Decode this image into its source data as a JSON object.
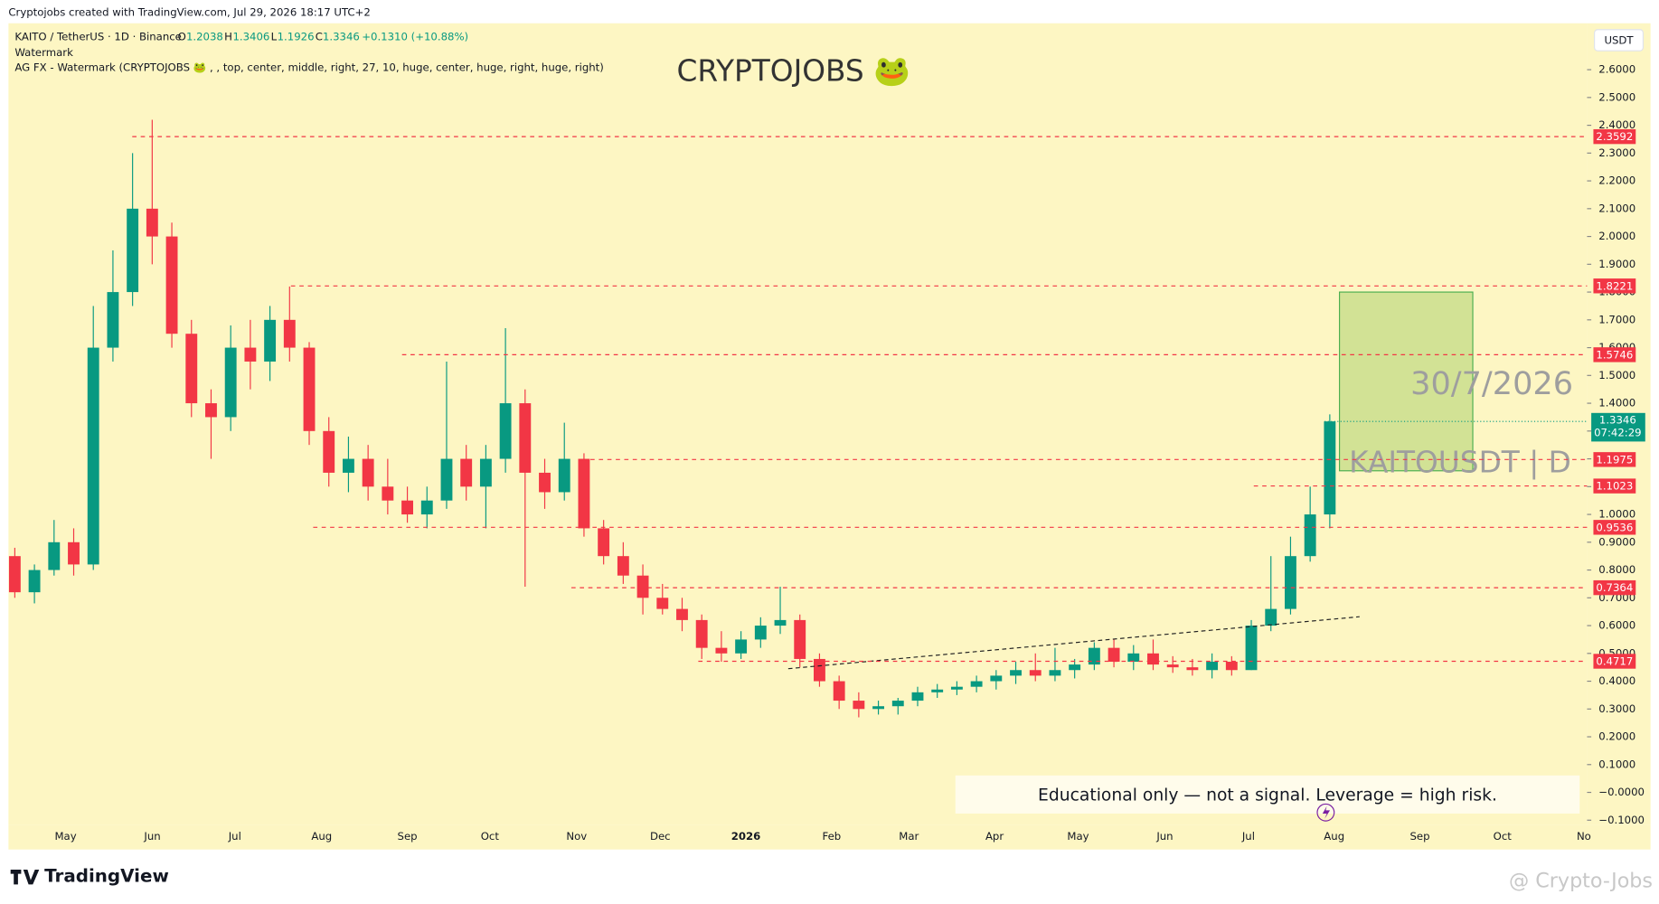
{
  "header": "Cryptojobs created with TradingView.com, Jul 29, 2026 18:17 UTC+2",
  "chart_data": {
    "type": "candlestick",
    "legend": {
      "symbol": "KAITO / TetherUS · 1D · Binance",
      "o_label": "O",
      "open": 1.2038,
      "h_label": "H",
      "high": 1.3406,
      "l_label": "L",
      "low": 1.1926,
      "c_label": "C",
      "close": 1.3346,
      "change": "+0.1310 (+10.88%)",
      "indicator1": "Watermark",
      "indicator2": "AG FX - Watermark (CRYPTOJOBS 🐸 , , top, center, middle, right, 27, 10, huge, center, huge, right, huge, right)"
    },
    "watermark": "CRYPTOJOBS 🐸",
    "currency": "USDT",
    "open": [
      0.85,
      0.72,
      0.8,
      0.9,
      0.82,
      1.6,
      1.8,
      2.1,
      2.0,
      1.65,
      1.4,
      1.35,
      1.6,
      1.55,
      1.7,
      1.6,
      1.3,
      1.15,
      1.2,
      1.1,
      1.05,
      1.0,
      1.05,
      1.2,
      1.1,
      1.2,
      1.4,
      1.15,
      1.08,
      1.2,
      0.95,
      0.85,
      0.78,
      0.7,
      0.66,
      0.62,
      0.52,
      0.5,
      0.55,
      0.6,
      0.62,
      0.48,
      0.4,
      0.33,
      0.3,
      0.31,
      0.33,
      0.36,
      0.37,
      0.38,
      0.4,
      0.42,
      0.44,
      0.42,
      0.44,
      0.46,
      0.52,
      0.47,
      0.5,
      0.46,
      0.45,
      0.44,
      0.47,
      0.44,
      0.6,
      0.66,
      0.85,
      1.0
    ],
    "high": [
      0.88,
      0.82,
      0.98,
      0.95,
      1.75,
      1.95,
      2.3,
      2.42,
      2.05,
      1.7,
      1.45,
      1.68,
      1.7,
      1.75,
      1.82,
      1.62,
      1.35,
      1.28,
      1.25,
      1.2,
      1.1,
      1.1,
      1.55,
      1.25,
      1.25,
      1.67,
      1.45,
      1.2,
      1.33,
      1.22,
      0.98,
      0.9,
      0.82,
      0.75,
      0.7,
      0.64,
      0.58,
      0.58,
      0.63,
      0.74,
      0.64,
      0.5,
      0.42,
      0.36,
      0.33,
      0.34,
      0.38,
      0.39,
      0.4,
      0.42,
      0.44,
      0.47,
      0.5,
      0.52,
      0.48,
      0.54,
      0.55,
      0.53,
      0.55,
      0.49,
      0.48,
      0.5,
      0.49,
      0.62,
      0.85,
      0.92,
      1.1,
      1.36
    ],
    "low": [
      0.7,
      0.68,
      0.78,
      0.78,
      0.8,
      1.55,
      1.75,
      1.9,
      1.6,
      1.35,
      1.2,
      1.3,
      1.45,
      1.48,
      1.55,
      1.25,
      1.1,
      1.08,
      1.05,
      1.0,
      0.97,
      0.95,
      1.02,
      1.05,
      0.95,
      1.15,
      0.74,
      1.02,
      1.05,
      0.92,
      0.82,
      0.75,
      0.64,
      0.64,
      0.58,
      0.48,
      0.47,
      0.48,
      0.52,
      0.57,
      0.45,
      0.38,
      0.3,
      0.27,
      0.28,
      0.28,
      0.31,
      0.34,
      0.35,
      0.36,
      0.37,
      0.39,
      0.4,
      0.4,
      0.41,
      0.44,
      0.45,
      0.44,
      0.44,
      0.43,
      0.42,
      0.41,
      0.42,
      0.44,
      0.58,
      0.64,
      0.83,
      0.95
    ],
    "close": [
      0.72,
      0.8,
      0.9,
      0.82,
      1.6,
      1.8,
      2.1,
      2.0,
      1.65,
      1.4,
      1.35,
      1.6,
      1.55,
      1.7,
      1.6,
      1.3,
      1.15,
      1.2,
      1.1,
      1.05,
      1.0,
      1.05,
      1.2,
      1.1,
      1.2,
      1.4,
      1.15,
      1.08,
      1.2,
      0.95,
      0.85,
      0.78,
      0.7,
      0.66,
      0.62,
      0.52,
      0.5,
      0.55,
      0.6,
      0.62,
      0.48,
      0.4,
      0.33,
      0.3,
      0.31,
      0.33,
      0.36,
      0.37,
      0.38,
      0.4,
      0.42,
      0.44,
      0.42,
      0.44,
      0.46,
      0.52,
      0.47,
      0.5,
      0.46,
      0.45,
      0.44,
      0.47,
      0.44,
      0.6,
      0.66,
      0.85,
      1.0,
      1.3346
    ],
    "up_color": "#089981",
    "down_color": "#f23645",
    "ylim": [
      -0.118,
      2.767
    ],
    "yticks": [
      {
        "value": 2.6,
        "label": "2.6000"
      },
      {
        "value": 2.5,
        "label": "2.5000"
      },
      {
        "value": 2.4,
        "label": "2.4000"
      },
      {
        "value": 2.3,
        "label": "2.3000"
      },
      {
        "value": 2.2,
        "label": "2.2000"
      },
      {
        "value": 2.1,
        "label": "2.1000"
      },
      {
        "value": 2.0,
        "label": "2.0000"
      },
      {
        "value": 1.9,
        "label": "1.9000"
      },
      {
        "value": 1.8,
        "label": "1.8000"
      },
      {
        "value": 1.7,
        "label": "1.7000"
      },
      {
        "value": 1.6,
        "label": "1.6000"
      },
      {
        "value": 1.5,
        "label": "1.5000"
      },
      {
        "value": 1.4,
        "label": "1.4000"
      },
      {
        "value": 1.3,
        "label": "1.3000"
      },
      {
        "value": 1.2,
        "label": "1.2000"
      },
      {
        "value": 1.1,
        "label": "1.1000"
      },
      {
        "value": 1.0,
        "label": "1.0000"
      },
      {
        "value": 0.9,
        "label": "0.9000"
      },
      {
        "value": 0.8,
        "label": "0.8000"
      },
      {
        "value": 0.7,
        "label": "0.7000"
      },
      {
        "value": 0.6,
        "label": "0.6000"
      },
      {
        "value": 0.5,
        "label": "0.5000"
      },
      {
        "value": 0.4,
        "label": "0.4000"
      },
      {
        "value": 0.3,
        "label": "0.3000"
      },
      {
        "value": 0.2,
        "label": "0.2000"
      },
      {
        "value": 0.1,
        "label": "0.1000"
      },
      {
        "value": 0,
        "label": "−0.0000"
      },
      {
        "value": -0.1,
        "label": "−0.1000"
      }
    ],
    "months": [
      "May",
      "Jun",
      "Jul",
      "Aug",
      "Sep",
      "Oct",
      "Nov",
      "Dec",
      "2026",
      "Feb",
      "Mar",
      "Apr",
      "May",
      "Jun",
      "Jul",
      "Aug",
      "Sep",
      "Oct",
      "No"
    ],
    "levels": [
      2.3592,
      1.8221,
      1.5746,
      1.1975,
      1.1023,
      0.9536,
      0.7364,
      0.4717
    ],
    "level_color": "#f23645",
    "last_price": 1.3346,
    "countdown": "07:42:29",
    "zone": {
      "top": 1.8,
      "bottom": 1.157,
      "date_label": "30/7/2026",
      "symbol_label": "KAITOUSDT | D"
    },
    "trendline": {
      "start": 0.445,
      "end": 0.632
    },
    "note": "Educational only — not a signal. Leverage  = high risk."
  },
  "footer": {
    "logo": "TradingView",
    "credit": "@ Crypto-Jobs"
  }
}
